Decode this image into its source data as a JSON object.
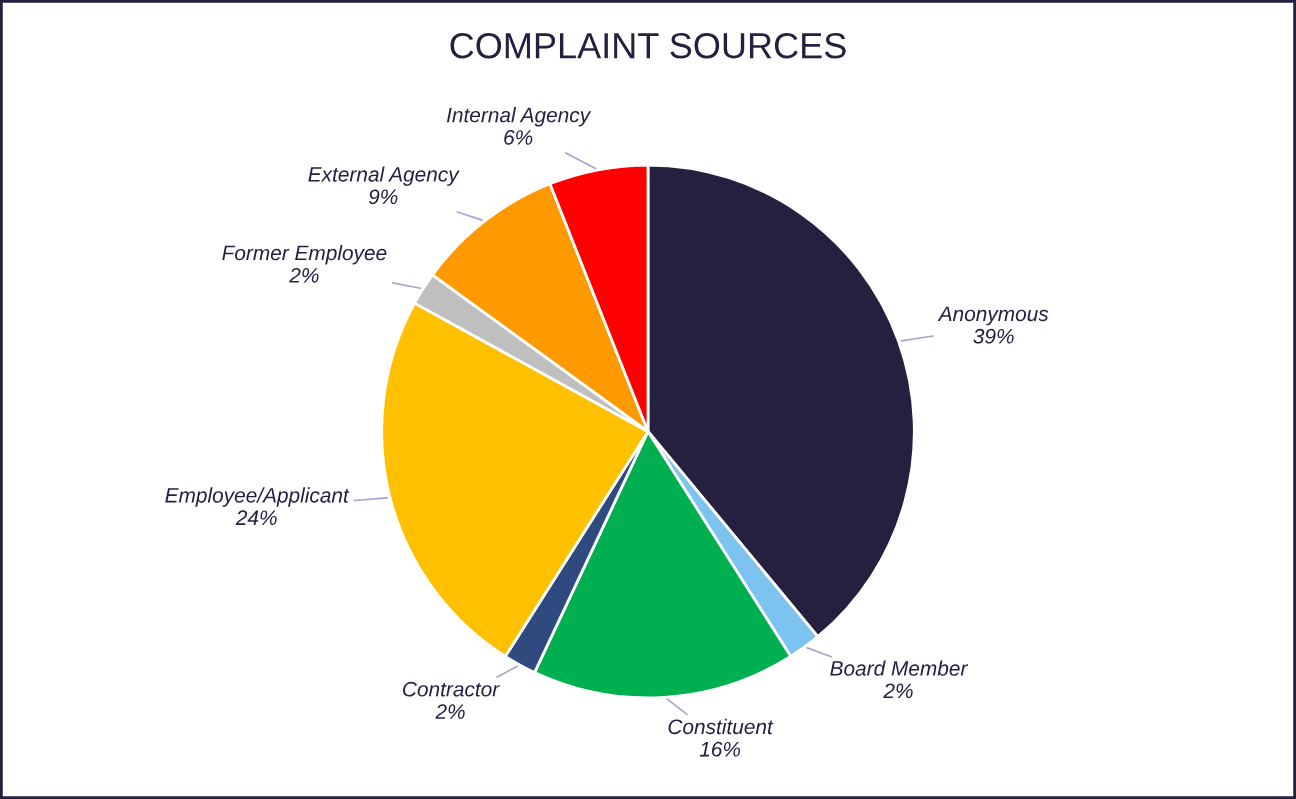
{
  "chart_data": {
    "type": "pie",
    "title": "COMPLAINT SOURCES",
    "categories": [
      "Anonymous",
      "Board Member",
      "Constituent",
      "Contractor",
      "Employee/Applicant",
      "Former Employee",
      "External Agency",
      "Internal Agency"
    ],
    "values": [
      39,
      2,
      16,
      2,
      24,
      2,
      9,
      6
    ],
    "value_labels": [
      "39%",
      "2%",
      "16%",
      "2%",
      "24%",
      "2%",
      "9%",
      "6%"
    ],
    "colors": [
      "#262040",
      "#7dc3f0",
      "#00b050",
      "#2e4a7e",
      "#ffc000",
      "#bfbfbf",
      "#ff9900",
      "#ff0000"
    ],
    "legend": false
  }
}
